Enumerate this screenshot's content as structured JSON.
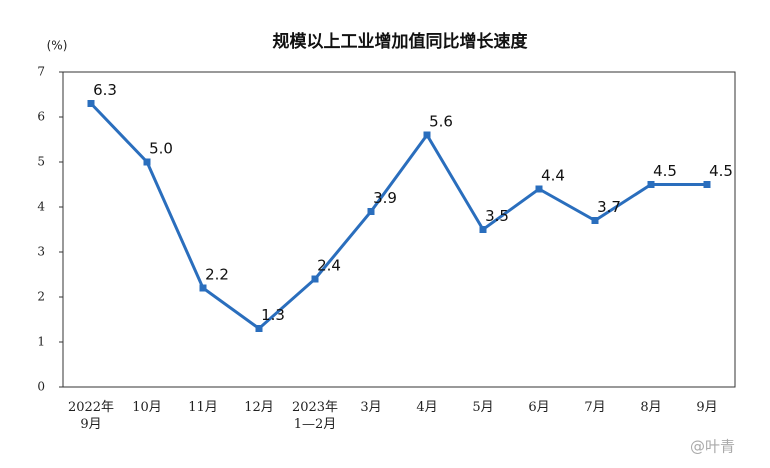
{
  "chart_data": {
    "type": "line",
    "title": "规模以上工业增加值同比增长速度",
    "y_label": "(%)",
    "categories": [
      "2022年\n9月",
      "10月",
      "11月",
      "12月",
      "2023年\n1—2月",
      "3月",
      "4月",
      "5月",
      "6月",
      "7月",
      "8月",
      "9月"
    ],
    "series": [
      {
        "name": "规模以上工业增加值同比增长速度",
        "color": "#2a6ebd",
        "values": [
          6.3,
          5.0,
          2.2,
          1.3,
          2.4,
          3.9,
          5.6,
          3.5,
          4.4,
          3.7,
          4.5,
          4.5
        ],
        "value_labels": [
          "6.3",
          "5.0",
          "2.2",
          "1.3",
          "2.4",
          "3.9",
          "5.6",
          "3.5",
          "4.4",
          "3.7",
          "4.5",
          "4.5"
        ]
      }
    ],
    "ylim": [
      0,
      7
    ],
    "yticks": [
      0,
      1,
      2,
      3,
      4,
      5,
      6,
      7
    ],
    "grid": false,
    "watermark": "@叶青"
  }
}
